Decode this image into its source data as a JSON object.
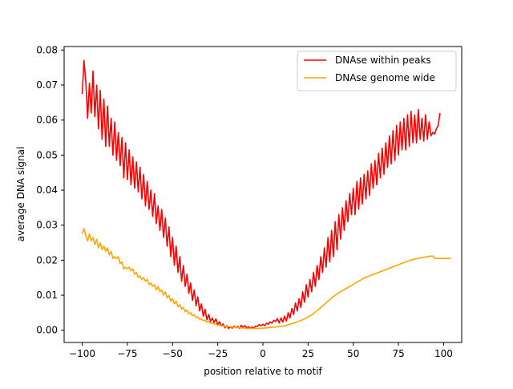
{
  "chart_data": {
    "type": "line",
    "title": "",
    "xlabel": "position relative to motif",
    "ylabel": "average DNA signal",
    "xlim": [
      -110,
      110
    ],
    "ylim": [
      -0.0035,
      0.081
    ],
    "grid": false,
    "legend_position": "top-right",
    "xticks": [
      -100,
      -75,
      -50,
      -25,
      0,
      25,
      50,
      75,
      100
    ],
    "xtick_labels": [
      "−100",
      "−75",
      "−50",
      "−25",
      "0",
      "25",
      "50",
      "75",
      "100"
    ],
    "yticks": [
      0,
      0.01,
      0.02,
      0.03,
      0.04,
      0.05,
      0.06,
      0.07,
      0.08
    ],
    "ytick_labels": [
      "0.00",
      "0.01",
      "0.02",
      "0.03",
      "0.04",
      "0.05",
      "0.06",
      "0.07",
      "0.08"
    ],
    "series": [
      {
        "name": "DNAse within peaks",
        "color": "#ff0000",
        "x_start": -100,
        "x_step": 1,
        "values": [
          0.0675,
          0.077,
          0.071,
          0.0605,
          0.0705,
          0.062,
          0.074,
          0.061,
          0.07,
          0.0575,
          0.0685,
          0.0545,
          0.066,
          0.0525,
          0.064,
          0.0525,
          0.0605,
          0.05,
          0.0595,
          0.0485,
          0.0565,
          0.047,
          0.055,
          0.0435,
          0.0535,
          0.043,
          0.0515,
          0.0415,
          0.0495,
          0.0405,
          0.048,
          0.0395,
          0.0465,
          0.0375,
          0.0445,
          0.0355,
          0.0425,
          0.0345,
          0.04,
          0.0325,
          0.039,
          0.0305,
          0.0355,
          0.0285,
          0.0345,
          0.0265,
          0.032,
          0.024,
          0.0295,
          0.021,
          0.0265,
          0.0185,
          0.024,
          0.0165,
          0.021,
          0.014,
          0.0185,
          0.0125,
          0.016,
          0.0105,
          0.0135,
          0.0085,
          0.0115,
          0.007,
          0.0095,
          0.0055,
          0.0075,
          0.004,
          0.006,
          0.003,
          0.0045,
          0.0025,
          0.0035,
          0.0022,
          0.0032,
          0.0016,
          0.0024,
          0.0012,
          0.0018,
          0.0007,
          0.0013,
          0.0005,
          0.001,
          0.0006,
          0.0012,
          0.0007,
          0.0011,
          0.0005,
          0.0014,
          0.0009,
          0.0013,
          0.0007,
          0.001,
          0.0005,
          0.0009,
          0.0006,
          0.0012,
          0.0011,
          0.0016,
          0.0013,
          0.0017,
          0.0013,
          0.002,
          0.0017,
          0.0024,
          0.002,
          0.0028,
          0.0025,
          0.0033,
          0.0021,
          0.0035,
          0.0023,
          0.004,
          0.0026,
          0.005,
          0.0035,
          0.0062,
          0.0045,
          0.0078,
          0.0055,
          0.009,
          0.0065,
          0.011,
          0.008,
          0.013,
          0.0095,
          0.0145,
          0.011,
          0.0165,
          0.0125,
          0.0185,
          0.0145,
          0.021,
          0.0165,
          0.0235,
          0.018,
          0.0265,
          0.0195,
          0.0285,
          0.021,
          0.031,
          0.023,
          0.033,
          0.026,
          0.035,
          0.0285,
          0.037,
          0.031,
          0.039,
          0.033,
          0.0405,
          0.033,
          0.0425,
          0.0345,
          0.0435,
          0.036,
          0.0445,
          0.0375,
          0.0455,
          0.0385,
          0.0475,
          0.0405,
          0.0485,
          0.0415,
          0.0505,
          0.0435,
          0.052,
          0.0445,
          0.0535,
          0.0465,
          0.0555,
          0.0475,
          0.057,
          0.0485,
          0.0585,
          0.05,
          0.0595,
          0.0515,
          0.0605,
          0.0515,
          0.0615,
          0.0525,
          0.0625,
          0.0535,
          0.0615,
          0.0535,
          0.063,
          0.0545,
          0.0605,
          0.054,
          0.0615,
          0.0545,
          0.0595,
          0.0555,
          0.0565,
          0.056,
          0.0575,
          0.0585,
          0.062
        ]
      },
      {
        "name": "DNAse genome wide",
        "color": "#ffa500",
        "x_start": -100,
        "x_step": 1,
        "values": [
          0.0275,
          0.029,
          0.027,
          0.0255,
          0.0275,
          0.0255,
          0.0265,
          0.0245,
          0.026,
          0.0235,
          0.025,
          0.023,
          0.024,
          0.0225,
          0.0235,
          0.0215,
          0.0225,
          0.0205,
          0.021,
          0.0205,
          0.021,
          0.019,
          0.0195,
          0.0175,
          0.018,
          0.0175,
          0.018,
          0.017,
          0.0175,
          0.016,
          0.0165,
          0.015,
          0.0155,
          0.0145,
          0.015,
          0.014,
          0.0145,
          0.013,
          0.0135,
          0.0125,
          0.013,
          0.0115,
          0.0125,
          0.011,
          0.0115,
          0.01,
          0.011,
          0.0092,
          0.01,
          0.0083,
          0.009,
          0.0075,
          0.0083,
          0.0067,
          0.0073,
          0.006,
          0.0065,
          0.0053,
          0.0057,
          0.0047,
          0.005,
          0.0041,
          0.0044,
          0.0036,
          0.0038,
          0.0031,
          0.0033,
          0.0027,
          0.0029,
          0.0023,
          0.0025,
          0.002,
          0.0021,
          0.0017,
          0.0018,
          0.0014,
          0.0015,
          0.0012,
          0.0013,
          0.0011,
          0.0011,
          0.001,
          0.001,
          0.0009,
          0.0009,
          0.0008,
          0.0008,
          0.0007,
          0.0007,
          0.0006,
          0.0006,
          0.0005,
          0.0005,
          0.0005,
          0.0005,
          0.0005,
          0.0005,
          0.0005,
          0.0005,
          0.0006,
          0.0006,
          0.0006,
          0.0007,
          0.0007,
          0.0008,
          0.0008,
          0.0009,
          0.0009,
          0.001,
          0.001,
          0.0011,
          0.0012,
          0.0013,
          0.0014,
          0.0016,
          0.0017,
          0.0019,
          0.002,
          0.0022,
          0.0024,
          0.0026,
          0.0028,
          0.003,
          0.0032,
          0.0035,
          0.0038,
          0.0041,
          0.0044,
          0.0048,
          0.0052,
          0.0056,
          0.006,
          0.0065,
          0.0069,
          0.0074,
          0.0078,
          0.0083,
          0.0087,
          0.0092,
          0.0096,
          0.01,
          0.0103,
          0.0107,
          0.011,
          0.0113,
          0.0116,
          0.0119,
          0.0122,
          0.0125,
          0.0128,
          0.0131,
          0.0134,
          0.0137,
          0.014,
          0.0143,
          0.0146,
          0.0149,
          0.0151,
          0.0153,
          0.0155,
          0.0157,
          0.0159,
          0.0161,
          0.0163,
          0.0165,
          0.0167,
          0.0169,
          0.0171,
          0.0173,
          0.0175,
          0.0177,
          0.0179,
          0.0181,
          0.0183,
          0.0185,
          0.0187,
          0.0189,
          0.0191,
          0.0193,
          0.0195,
          0.0197,
          0.0199,
          0.0201,
          0.0202,
          0.0203,
          0.0204,
          0.0205,
          0.0206,
          0.0207,
          0.0208,
          0.0209,
          0.021,
          0.0211,
          0.0212,
          0.0212,
          0.0205,
          0.0205,
          0.0205,
          0.0205,
          0.0205,
          0.0205,
          0.0205,
          0.0205,
          0.0205,
          0.0205
        ]
      }
    ]
  }
}
